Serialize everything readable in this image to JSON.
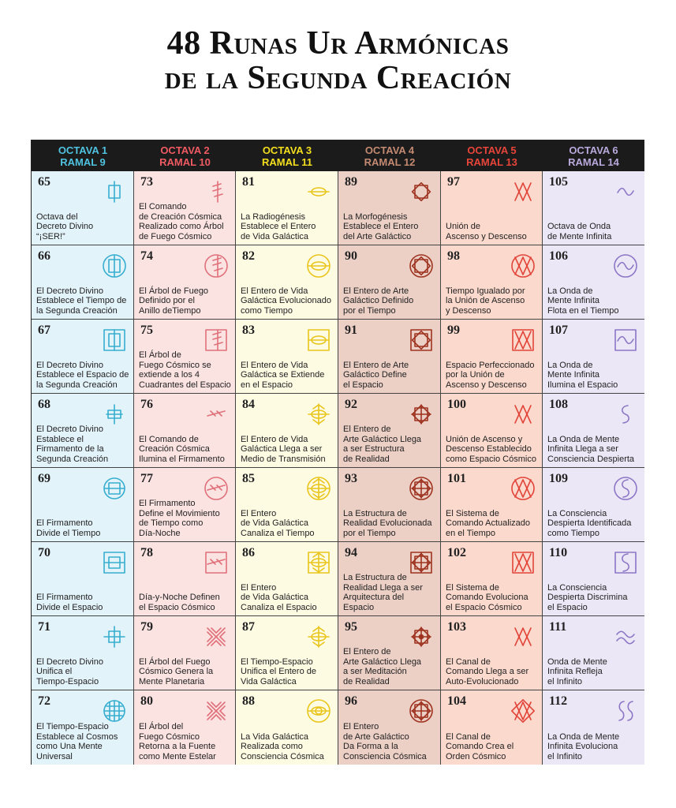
{
  "title": {
    "line1": "48 Runas Ur Armónicas",
    "line2": "de la Segunda Creación"
  },
  "colors": {
    "header_bg": "#1b1b1b",
    "octaves": [
      {
        "fg": "#4fc3e0",
        "bg": "#e3f3fa",
        "icon": "#36aed0"
      },
      {
        "fg": "#f05a62",
        "bg": "#fbe3e2",
        "icon": "#e0707a"
      },
      {
        "fg": "#f4df1e",
        "bg": "#fefbe3",
        "icon": "#e9c51b"
      },
      {
        "fg": "#c48a72",
        "bg": "#ecd0c6",
        "icon": "#9e3320"
      },
      {
        "fg": "#e8453a",
        "bg": "#fbd9cd",
        "icon": "#e2443a"
      },
      {
        "fg": "#b9a9dc",
        "bg": "#ece7f6",
        "icon": "#8c76c6"
      }
    ]
  },
  "headers": [
    {
      "octava": "OCTAVA 1",
      "ramal": "RAMAL 9"
    },
    {
      "octava": "OCTAVA 2",
      "ramal": "RAMAL 10"
    },
    {
      "octava": "OCTAVA 3",
      "ramal": "RAMAL 11"
    },
    {
      "octava": "OCTAVA 4",
      "ramal": "RAMAL 12"
    },
    {
      "octava": "OCTAVA 5",
      "ramal": "RAMAL 13"
    },
    {
      "octava": "OCTAVA 6",
      "ramal": "RAMAL 14"
    }
  ],
  "rows": [
    [
      {
        "num": "65",
        "text": "Octava del\nDecreto Divino\n“¡SER!”",
        "icon": "rune-65-icon"
      },
      {
        "num": "73",
        "text": "El Comando\nde Creación Cósmica\nRealizado como Árbol\nde Fuego Cósmico",
        "icon": "rune-73-icon"
      },
      {
        "num": "81",
        "text": "La Radiogénesis\nEstablece el Entero\nde Vida Galáctica",
        "icon": "rune-81-icon"
      },
      {
        "num": "89",
        "text": "La Morfogénesis\nEstablece el Entero\ndel Arte Galáctico",
        "icon": "rune-89-icon"
      },
      {
        "num": "97",
        "text": "Unión de\nAscenso y Descenso",
        "icon": "rune-97-icon"
      },
      {
        "num": "105",
        "text": "Octava de Onda\nde Mente Infinita",
        "icon": "rune-105-icon"
      }
    ],
    [
      {
        "num": "66",
        "text": "El Decreto Divino\nEstablece el Tiempo de\nla Segunda Creación",
        "icon": "rune-66-icon"
      },
      {
        "num": "74",
        "text": "El Árbol de Fuego\nDefinido por el\nAnillo deTiempo",
        "icon": "rune-74-icon"
      },
      {
        "num": "82",
        "text": "El Entero de Vida\nGaláctica Evolucionado\ncomo Tiempo",
        "icon": "rune-82-icon"
      },
      {
        "num": "90",
        "text": "El Entero de Arte\nGaláctico Definido\npor el Tiempo",
        "icon": "rune-90-icon"
      },
      {
        "num": "98",
        "text": "Tiempo Igualado por\nla Unión de Ascenso\ny Descenso",
        "icon": "rune-98-icon"
      },
      {
        "num": "106",
        "text": "La Onda de\nMente Infinita\nFlota en el Tiempo",
        "icon": "rune-106-icon"
      }
    ],
    [
      {
        "num": "67",
        "text": "El Decreto Divino\nEstablece el Espacio de\nla Segunda Creación",
        "icon": "rune-67-icon"
      },
      {
        "num": "75",
        "text": "El Árbol de\nFuego Cósmico se\nextiende a los 4\nCuadrantes del Espacio",
        "icon": "rune-75-icon"
      },
      {
        "num": "83",
        "text": "El Entero de Vida\nGaláctica se Extiende\nen el Espacio",
        "icon": "rune-83-icon"
      },
      {
        "num": "91",
        "text": "El Entero de Arte\nGaláctico Define\nel Espacio",
        "icon": "rune-91-icon"
      },
      {
        "num": "99",
        "text": "Espacio Perfeccionado\npor la Unión de\nAscenso y Descenso",
        "icon": "rune-99-icon"
      },
      {
        "num": "107",
        "text": "La Onda de\nMente Infinita\nIlumina el Espacio",
        "icon": "rune-107-icon"
      }
    ],
    [
      {
        "num": "68",
        "text": "El Decreto Divino\nEstablece el\nFirmamento de la\nSegunda Creación",
        "icon": "rune-68-icon"
      },
      {
        "num": "76",
        "text": "El Comando de\nCreación Cósmica\nIlumina el Firmamento",
        "icon": "rune-76-icon"
      },
      {
        "num": "84",
        "text": "El Entero de Vida\nGaláctica Llega a ser\nMedio de Transmisión",
        "icon": "rune-84-icon"
      },
      {
        "num": "92",
        "text": "El Entero de\nArte Galáctico Llega\na ser Estructura\nde Realidad",
        "icon": "rune-92-icon"
      },
      {
        "num": "100",
        "text": "Unión de Ascenso y\nDescenso Establecido\ncomo Espacio Cósmico",
        "icon": "rune-100-icon"
      },
      {
        "num": "108",
        "text": "La Onda de Mente\nInfinita Llega a ser\nConsciencia Despierta",
        "icon": "rune-108-icon"
      }
    ],
    [
      {
        "num": "69",
        "text": "El Firmamento\nDivide el Tiempo",
        "icon": "rune-69-icon"
      },
      {
        "num": "77",
        "text": "El Firmamento\nDefine el Movimiento\nde Tiempo como\nDía-Noche",
        "icon": "rune-77-icon"
      },
      {
        "num": "85",
        "text": "El Entero\nde Vida Galáctica\nCanaliza el Tiempo",
        "icon": "rune-85-icon"
      },
      {
        "num": "93",
        "text": "La Estructura de\nRealidad Evolucionada\npor el Tiempo",
        "icon": "rune-93-icon"
      },
      {
        "num": "101",
        "text": "El Sistema de\nComando Actualizado\nen el Tiempo",
        "icon": "rune-101-icon"
      },
      {
        "num": "109",
        "text": "La Consciencia\nDespierta Identificada\ncomo Tiempo",
        "icon": "rune-109-icon"
      }
    ],
    [
      {
        "num": "70",
        "text": "El Firmamento\nDivide el Espacio",
        "icon": "rune-70-icon"
      },
      {
        "num": "78",
        "text": "Día-y-Noche Definen\nel Espacio Cósmico",
        "icon": "rune-78-icon"
      },
      {
        "num": "86",
        "text": "El Entero\nde Vida Galáctica\nCanaliza el Espacio",
        "icon": "rune-86-icon"
      },
      {
        "num": "94",
        "text": "La Estructura de\nRealidad Llega a ser\nArquitectura del\nEspacio",
        "icon": "rune-94-icon"
      },
      {
        "num": "102",
        "text": "El Sistema de\nComando Evoluciona\nel Espacio Cósmico",
        "icon": "rune-102-icon"
      },
      {
        "num": "110",
        "text": "La Consciencia\nDespierta Discrimina\nel Espacio",
        "icon": "rune-110-icon"
      }
    ],
    [
      {
        "num": "71",
        "text": "El Decreto Divino\nUnifica el\nTiempo-Espacio",
        "icon": "rune-71-icon"
      },
      {
        "num": "79",
        "text": "El Árbol del Fuego\nCósmico Genera la\nMente Planetaria",
        "icon": "rune-79-icon"
      },
      {
        "num": "87",
        "text": "El Tiempo-Espacio\nUnifica el Entero de\nVida Galáctica",
        "icon": "rune-87-icon"
      },
      {
        "num": "95",
        "text": "El Entero de\nArte Galáctico Llega\na ser Meditación\nde Realidad",
        "icon": "rune-95-icon"
      },
      {
        "num": "103",
        "text": "El Canal de\nComando Llega a ser\nAuto-Evolucionado",
        "icon": "rune-103-icon"
      },
      {
        "num": "111",
        "text": "Onda de Mente\nInfinita Refleja\nel Infinito",
        "icon": "rune-111-icon"
      }
    ],
    [
      {
        "num": "72",
        "text": "El Tiempo-Espacio\nEstablece al Cosmos\ncomo Una Mente\nUniversal",
        "icon": "rune-72-icon"
      },
      {
        "num": "80",
        "text": "El Árbol del\nFuego Cósmico\nRetorna a la Fuente\ncomo Mente Estelar",
        "icon": "rune-80-icon"
      },
      {
        "num": "88",
        "text": "La Vida Galáctica\nRealizada como\nConsciencia Cósmica",
        "icon": "rune-88-icon"
      },
      {
        "num": "96",
        "text": "El Entero\nde Arte Galáctico\nDa Forma a la\nConsciencia Cósmica",
        "icon": "rune-96-icon"
      },
      {
        "num": "104",
        "text": "El Canal de\nComando Crea el\nOrden Cósmico",
        "icon": "rune-104-icon"
      },
      {
        "num": "112",
        "text": "La Onda de Mente\nInfinita Evoluciona\nel Infinito",
        "icon": "rune-112-icon"
      }
    ]
  ]
}
